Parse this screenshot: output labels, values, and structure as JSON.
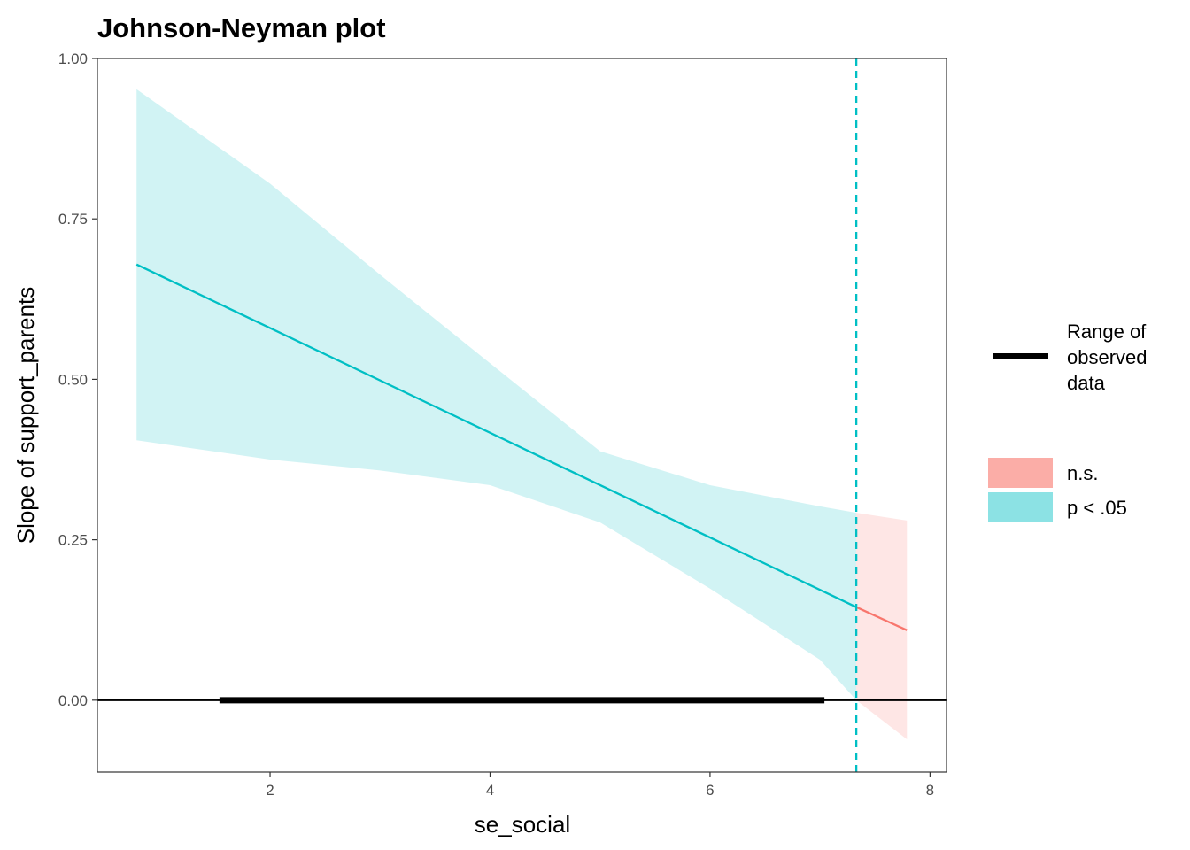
{
  "chart_data": {
    "type": "line",
    "title": "Johnson-Neyman plot",
    "xlabel": "se_social",
    "ylabel": "Slope of support_parents",
    "xlim": [
      0.43,
      8.15
    ],
    "ylim": [
      -0.112,
      1.0
    ],
    "x_ticks": [
      "2",
      "4",
      "6",
      "8"
    ],
    "y_ticks": [
      "0.00",
      "0.25",
      "0.50",
      "0.75",
      "1.00"
    ],
    "grid": false,
    "legend_position": "right",
    "jn_point": 7.33,
    "reference_line_y": 0,
    "observed_range": {
      "label": "Range of observed data",
      "label_lines": [
        "Range of",
        "observed",
        "data"
      ],
      "x": [
        1.54,
        7.04
      ]
    },
    "series": [
      {
        "name": "p < .05",
        "color": "#00BFC4",
        "x": [
          0.786,
          7.33
        ],
        "y": [
          0.679,
          0.145
        ],
        "band_x": [
          0.786,
          2,
          3,
          4,
          5,
          6,
          7,
          7.33
        ],
        "band_upper": [
          0.952,
          0.805,
          0.663,
          0.525,
          0.388,
          0.335,
          0.302,
          0.292
        ],
        "band_lower": [
          0.405,
          0.375,
          0.358,
          0.335,
          0.277,
          0.174,
          0.063,
          0.0
        ]
      },
      {
        "name": "n.s.",
        "color": "#F8766D",
        "x": [
          7.33,
          7.79
        ],
        "y": [
          0.145,
          0.109
        ],
        "band_x": [
          7.33,
          7.79
        ],
        "band_upper": [
          0.292,
          0.28
        ],
        "band_lower": [
          0.0,
          -0.061
        ]
      }
    ],
    "legend": [
      {
        "label": "n.s.",
        "color": "#F8766D"
      },
      {
        "label": "p < .05",
        "color": "#00BFC4"
      }
    ]
  }
}
